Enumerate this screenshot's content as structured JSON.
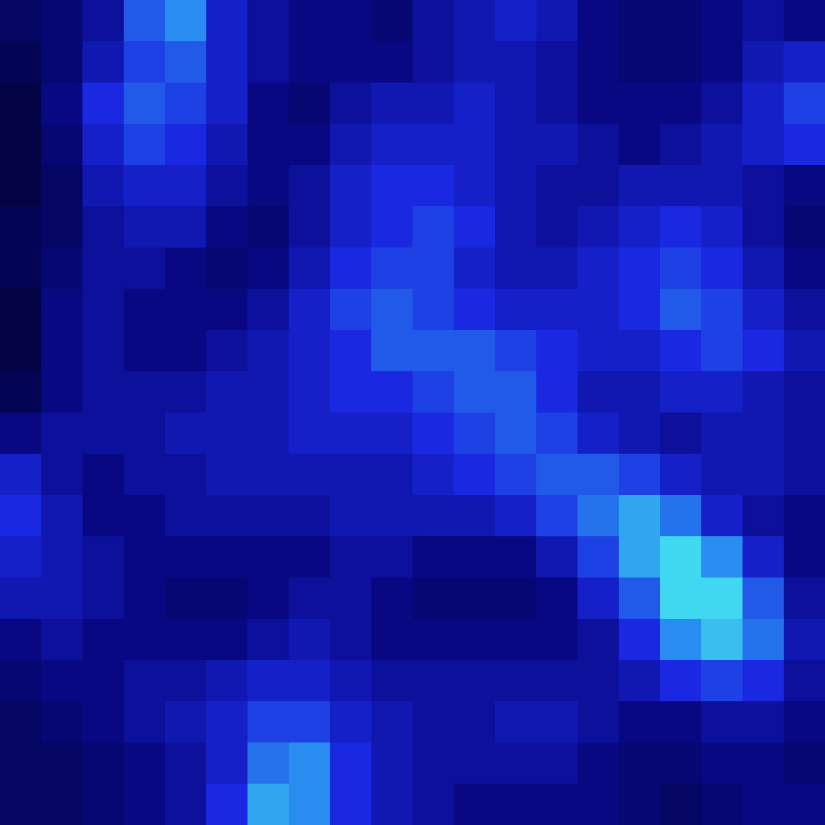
{
  "chart_data": {
    "type": "heatmap",
    "tick_labels": false,
    "grid": false,
    "xlim": [
      0,
      20
    ],
    "ylim": [
      0,
      20
    ],
    "value_range": [
      0,
      1
    ],
    "cells": [
      [
        0.2,
        0.25,
        0.35,
        0.6,
        0.7,
        0.45,
        0.35,
        0.3,
        0.3,
        0.25,
        0.35,
        0.4,
        0.45,
        0.4,
        0.3,
        0.25,
        0.25,
        0.3,
        0.35,
        0.3
      ],
      [
        0.15,
        0.25,
        0.4,
        0.55,
        0.6,
        0.45,
        0.35,
        0.3,
        0.3,
        0.3,
        0.35,
        0.4,
        0.4,
        0.35,
        0.3,
        0.25,
        0.25,
        0.3,
        0.4,
        0.45
      ],
      [
        0.1,
        0.3,
        0.5,
        0.6,
        0.55,
        0.45,
        0.3,
        0.25,
        0.35,
        0.4,
        0.4,
        0.45,
        0.4,
        0.35,
        0.3,
        0.3,
        0.3,
        0.35,
        0.45,
        0.55
      ],
      [
        0.1,
        0.25,
        0.45,
        0.55,
        0.5,
        0.4,
        0.3,
        0.3,
        0.4,
        0.45,
        0.45,
        0.45,
        0.4,
        0.4,
        0.35,
        0.3,
        0.35,
        0.4,
        0.45,
        0.5
      ],
      [
        0.1,
        0.2,
        0.4,
        0.45,
        0.45,
        0.35,
        0.3,
        0.35,
        0.45,
        0.5,
        0.5,
        0.45,
        0.4,
        0.35,
        0.35,
        0.4,
        0.4,
        0.4,
        0.35,
        0.3
      ],
      [
        0.15,
        0.2,
        0.35,
        0.4,
        0.4,
        0.3,
        0.25,
        0.35,
        0.45,
        0.5,
        0.55,
        0.5,
        0.4,
        0.35,
        0.4,
        0.45,
        0.5,
        0.45,
        0.35,
        0.25
      ],
      [
        0.15,
        0.25,
        0.35,
        0.35,
        0.3,
        0.25,
        0.3,
        0.4,
        0.5,
        0.55,
        0.55,
        0.45,
        0.4,
        0.4,
        0.45,
        0.5,
        0.55,
        0.5,
        0.4,
        0.3
      ],
      [
        0.1,
        0.3,
        0.35,
        0.3,
        0.3,
        0.3,
        0.35,
        0.45,
        0.55,
        0.6,
        0.55,
        0.5,
        0.45,
        0.45,
        0.45,
        0.5,
        0.6,
        0.55,
        0.45,
        0.35
      ],
      [
        0.1,
        0.3,
        0.35,
        0.3,
        0.3,
        0.35,
        0.4,
        0.45,
        0.5,
        0.6,
        0.6,
        0.6,
        0.55,
        0.5,
        0.45,
        0.45,
        0.5,
        0.55,
        0.5,
        0.4
      ],
      [
        0.15,
        0.3,
        0.35,
        0.35,
        0.35,
        0.4,
        0.4,
        0.45,
        0.5,
        0.5,
        0.55,
        0.6,
        0.6,
        0.5,
        0.4,
        0.4,
        0.45,
        0.45,
        0.4,
        0.35
      ],
      [
        0.3,
        0.35,
        0.35,
        0.35,
        0.4,
        0.4,
        0.4,
        0.45,
        0.45,
        0.45,
        0.5,
        0.55,
        0.6,
        0.55,
        0.45,
        0.4,
        0.35,
        0.4,
        0.4,
        0.35
      ],
      [
        0.45,
        0.35,
        0.3,
        0.35,
        0.35,
        0.4,
        0.4,
        0.4,
        0.4,
        0.4,
        0.45,
        0.5,
        0.55,
        0.6,
        0.6,
        0.55,
        0.45,
        0.4,
        0.4,
        0.35
      ],
      [
        0.5,
        0.4,
        0.3,
        0.3,
        0.35,
        0.35,
        0.35,
        0.35,
        0.4,
        0.4,
        0.4,
        0.4,
        0.45,
        0.55,
        0.65,
        0.75,
        0.65,
        0.45,
        0.35,
        0.3
      ],
      [
        0.45,
        0.4,
        0.35,
        0.3,
        0.3,
        0.3,
        0.3,
        0.3,
        0.35,
        0.35,
        0.3,
        0.3,
        0.3,
        0.4,
        0.55,
        0.75,
        0.85,
        0.7,
        0.45,
        0.3
      ],
      [
        0.4,
        0.4,
        0.35,
        0.3,
        0.25,
        0.25,
        0.3,
        0.35,
        0.35,
        0.3,
        0.25,
        0.25,
        0.25,
        0.3,
        0.45,
        0.6,
        0.85,
        0.85,
        0.6,
        0.35
      ],
      [
        0.3,
        0.35,
        0.3,
        0.3,
        0.3,
        0.3,
        0.35,
        0.4,
        0.35,
        0.3,
        0.3,
        0.3,
        0.3,
        0.3,
        0.35,
        0.5,
        0.7,
        0.8,
        0.65,
        0.4
      ],
      [
        0.25,
        0.3,
        0.3,
        0.35,
        0.35,
        0.4,
        0.45,
        0.45,
        0.4,
        0.35,
        0.35,
        0.35,
        0.35,
        0.35,
        0.35,
        0.4,
        0.5,
        0.55,
        0.5,
        0.35
      ],
      [
        0.2,
        0.25,
        0.3,
        0.35,
        0.4,
        0.45,
        0.55,
        0.55,
        0.45,
        0.4,
        0.35,
        0.35,
        0.4,
        0.4,
        0.35,
        0.3,
        0.3,
        0.35,
        0.35,
        0.3
      ],
      [
        0.2,
        0.2,
        0.25,
        0.3,
        0.35,
        0.45,
        0.65,
        0.7,
        0.5,
        0.4,
        0.35,
        0.35,
        0.35,
        0.35,
        0.3,
        0.25,
        0.25,
        0.3,
        0.3,
        0.25
      ],
      [
        0.2,
        0.2,
        0.25,
        0.3,
        0.35,
        0.5,
        0.75,
        0.7,
        0.5,
        0.4,
        0.35,
        0.3,
        0.3,
        0.3,
        0.3,
        0.25,
        0.2,
        0.25,
        0.3,
        0.3
      ]
    ]
  }
}
